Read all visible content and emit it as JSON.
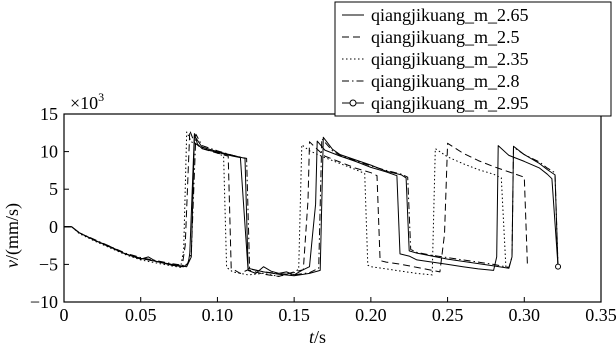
{
  "chart_data": {
    "type": "line",
    "title": "",
    "xlabel": {
      "var": "t",
      "unit": "/s"
    },
    "ylabel": {
      "var": "v",
      "unit": "/(mm/s)"
    },
    "y_multiplier": "×10",
    "y_multiplier_exp": "3",
    "xlim": [
      0,
      0.35
    ],
    "ylim": [
      -10,
      15
    ],
    "xticks": [
      "0",
      "0.05",
      "0.10",
      "0.15",
      "0.20",
      "0.25",
      "0.30",
      "0.35"
    ],
    "xtick_values": [
      0,
      0.05,
      0.1,
      0.15,
      0.2,
      0.25,
      0.3,
      0.35
    ],
    "yticks": [
      "15",
      "10",
      "5",
      "0",
      "−5",
      "−10"
    ],
    "ytick_values": [
      15,
      10,
      5,
      0,
      -5,
      -10
    ],
    "grid": false,
    "legend_position": "top-right",
    "series": [
      {
        "name": "qiangjikuang_m_2.65",
        "style": "solid",
        "points": [
          [
            0,
            0
          ],
          [
            0.005,
            0
          ],
          [
            0.01,
            -0.8
          ],
          [
            0.02,
            -1.8
          ],
          [
            0.03,
            -2.6
          ],
          [
            0.04,
            -3.6
          ],
          [
            0.05,
            -4.3
          ],
          [
            0.055,
            -4
          ],
          [
            0.06,
            -4.6
          ],
          [
            0.07,
            -5.1
          ],
          [
            0.078,
            -5.3
          ],
          [
            0.081,
            -4.8
          ],
          [
            0.082,
            -3.5
          ],
          [
            0.085,
            12.4
          ],
          [
            0.087,
            11
          ],
          [
            0.09,
            10.4
          ],
          [
            0.1,
            9.9
          ],
          [
            0.11,
            9.4
          ],
          [
            0.115,
            9.2
          ],
          [
            0.118,
            0.2
          ],
          [
            0.12,
            -5.8
          ],
          [
            0.125,
            -6.2
          ],
          [
            0.13,
            -5.3
          ],
          [
            0.135,
            -5.9
          ],
          [
            0.14,
            -6.2
          ],
          [
            0.145,
            -6
          ],
          [
            0.15,
            -6.4
          ],
          [
            0.155,
            -5.8
          ],
          [
            0.16,
            -5.3
          ],
          [
            0.162,
            -1
          ],
          [
            0.164,
            3
          ],
          [
            0.165,
            11.4
          ],
          [
            0.17,
            10.2
          ],
          [
            0.18,
            9.4
          ],
          [
            0.19,
            8.7
          ],
          [
            0.2,
            7.9
          ],
          [
            0.21,
            7.3
          ],
          [
            0.217,
            6.8
          ],
          [
            0.219,
            -3.6
          ],
          [
            0.225,
            -3.9
          ],
          [
            0.23,
            -4.4
          ],
          [
            0.24,
            -4.7
          ],
          [
            0.25,
            -5
          ],
          [
            0.26,
            -5.3
          ],
          [
            0.27,
            -5.6
          ],
          [
            0.28,
            -5.8
          ],
          [
            0.282,
            -4
          ],
          [
            0.283,
            10.8
          ],
          [
            0.29,
            9.5
          ],
          [
            0.3,
            8.7
          ],
          [
            0.31,
            7.8
          ],
          [
            0.315,
            7
          ],
          [
            0.318,
            6.4
          ],
          [
            0.322,
            -5.2
          ]
        ]
      },
      {
        "name": "qiangjikuang_m_2.5",
        "style": "dashed",
        "points": [
          [
            0,
            0
          ],
          [
            0.005,
            0
          ],
          [
            0.01,
            -0.8
          ],
          [
            0.02,
            -1.8
          ],
          [
            0.03,
            -2.7
          ],
          [
            0.04,
            -3.6
          ],
          [
            0.05,
            -4.2
          ],
          [
            0.06,
            -4.6
          ],
          [
            0.07,
            -5
          ],
          [
            0.077,
            -5.3
          ],
          [
            0.079,
            -2.5
          ],
          [
            0.082,
            12.8
          ],
          [
            0.085,
            11.2
          ],
          [
            0.09,
            10.4
          ],
          [
            0.1,
            9.8
          ],
          [
            0.107,
            9.4
          ],
          [
            0.109,
            -5.5
          ],
          [
            0.115,
            -6.2
          ],
          [
            0.12,
            -5.7
          ],
          [
            0.13,
            -6.3
          ],
          [
            0.14,
            -6.6
          ],
          [
            0.15,
            -6
          ],
          [
            0.156,
            -5.7
          ],
          [
            0.159,
            3.5
          ],
          [
            0.16,
            11.3
          ],
          [
            0.165,
            10.3
          ],
          [
            0.17,
            9.4
          ],
          [
            0.18,
            8.6
          ],
          [
            0.19,
            7.8
          ],
          [
            0.2,
            7.2
          ],
          [
            0.204,
            6.8
          ],
          [
            0.206,
            -4.5
          ],
          [
            0.21,
            -4.7
          ],
          [
            0.22,
            -5
          ],
          [
            0.23,
            -5.4
          ],
          [
            0.24,
            -5.8
          ],
          [
            0.245,
            -6
          ],
          [
            0.248,
            -1
          ],
          [
            0.25,
            11.1
          ],
          [
            0.26,
            9.8
          ],
          [
            0.27,
            8.8
          ],
          [
            0.28,
            8
          ],
          [
            0.29,
            7.3
          ],
          [
            0.3,
            6.6
          ],
          [
            0.302,
            -5
          ]
        ]
      },
      {
        "name": "qiangjikuang_m_2.35",
        "style": "dotted",
        "points": [
          [
            0,
            0
          ],
          [
            0.005,
            0
          ],
          [
            0.01,
            -0.9
          ],
          [
            0.02,
            -1.9
          ],
          [
            0.03,
            -2.8
          ],
          [
            0.04,
            -3.7
          ],
          [
            0.05,
            -4.4
          ],
          [
            0.06,
            -4.8
          ],
          [
            0.07,
            -5.2
          ],
          [
            0.076,
            -5.4
          ],
          [
            0.078,
            -3
          ],
          [
            0.08,
            12.6
          ],
          [
            0.083,
            11.3
          ],
          [
            0.09,
            10.5
          ],
          [
            0.1,
            9.8
          ],
          [
            0.104,
            9.4
          ],
          [
            0.106,
            -5.4
          ],
          [
            0.11,
            -6
          ],
          [
            0.12,
            -6.4
          ],
          [
            0.13,
            -6.2
          ],
          [
            0.14,
            -6.6
          ],
          [
            0.15,
            -6.1
          ],
          [
            0.153,
            -5.6
          ],
          [
            0.155,
            10.9
          ],
          [
            0.16,
            10.1
          ],
          [
            0.17,
            9.2
          ],
          [
            0.18,
            8.4
          ],
          [
            0.19,
            7.6
          ],
          [
            0.196,
            7.1
          ],
          [
            0.198,
            -5.1
          ],
          [
            0.2,
            -5.3
          ],
          [
            0.21,
            -5.6
          ],
          [
            0.22,
            -5.9
          ],
          [
            0.23,
            -6.2
          ],
          [
            0.24,
            -6.4
          ],
          [
            0.242,
            10.4
          ],
          [
            0.25,
            9.3
          ],
          [
            0.26,
            8.4
          ],
          [
            0.27,
            7.6
          ],
          [
            0.28,
            7
          ],
          [
            0.285,
            6.5
          ],
          [
            0.288,
            -5.4
          ]
        ]
      },
      {
        "name": "qiangjikuang_m_2.8",
        "style": "dashdot",
        "points": [
          [
            0,
            0
          ],
          [
            0.005,
            0
          ],
          [
            0.01,
            -0.8
          ],
          [
            0.02,
            -1.7
          ],
          [
            0.03,
            -2.6
          ],
          [
            0.04,
            -3.5
          ],
          [
            0.05,
            -4.1
          ],
          [
            0.06,
            -4.5
          ],
          [
            0.07,
            -4.9
          ],
          [
            0.08,
            -5.2
          ],
          [
            0.083,
            -3.5
          ],
          [
            0.086,
            12.3
          ],
          [
            0.09,
            10.8
          ],
          [
            0.1,
            10.1
          ],
          [
            0.11,
            9.5
          ],
          [
            0.119,
            9.1
          ],
          [
            0.121,
            -5.6
          ],
          [
            0.13,
            -6
          ],
          [
            0.14,
            -6.2
          ],
          [
            0.15,
            -6.4
          ],
          [
            0.16,
            -6.1
          ],
          [
            0.166,
            -5.5
          ],
          [
            0.168,
            11.7
          ],
          [
            0.175,
            10.1
          ],
          [
            0.18,
            9.5
          ],
          [
            0.19,
            8.8
          ],
          [
            0.2,
            8.1
          ],
          [
            0.21,
            7.5
          ],
          [
            0.22,
            7
          ],
          [
            0.224,
            6.6
          ],
          [
            0.226,
            -3
          ],
          [
            0.23,
            -3.4
          ],
          [
            0.24,
            -3.8
          ],
          [
            0.25,
            -4.1
          ],
          [
            0.26,
            -4.4
          ],
          [
            0.27,
            -4.7
          ],
          [
            0.28,
            -5
          ],
          [
            0.29,
            -5.4
          ],
          [
            0.292,
            -4
          ],
          [
            0.293,
            10.6
          ],
          [
            0.3,
            9.6
          ],
          [
            0.31,
            8.6
          ],
          [
            0.315,
            7.8
          ],
          [
            0.32,
            7.2
          ],
          [
            0.322,
            -5.2
          ]
        ]
      },
      {
        "name": "qiangjikuang_m_2.95",
        "style": "solid-circle",
        "points": [
          [
            0,
            0
          ],
          [
            0.005,
            0
          ],
          [
            0.01,
            -0.8
          ],
          [
            0.02,
            -1.8
          ],
          [
            0.03,
            -2.7
          ],
          [
            0.04,
            -3.6
          ],
          [
            0.05,
            -4.2
          ],
          [
            0.06,
            -4.6
          ],
          [
            0.07,
            -5
          ],
          [
            0.08,
            -5.3
          ],
          [
            0.083,
            -4
          ],
          [
            0.085,
            12.1
          ],
          [
            0.09,
            10.6
          ],
          [
            0.1,
            10
          ],
          [
            0.11,
            9.5
          ],
          [
            0.118,
            9.1
          ],
          [
            0.12,
            -5.5
          ],
          [
            0.13,
            -6
          ],
          [
            0.14,
            -6.3
          ],
          [
            0.15,
            -6.5
          ],
          [
            0.16,
            -6.2
          ],
          [
            0.167,
            -5.8
          ],
          [
            0.169,
            11.9
          ],
          [
            0.175,
            10.3
          ],
          [
            0.18,
            9.6
          ],
          [
            0.19,
            8.9
          ],
          [
            0.2,
            8.2
          ],
          [
            0.21,
            7.4
          ],
          [
            0.22,
            6.9
          ],
          [
            0.223,
            6.5
          ],
          [
            0.225,
            -3.2
          ],
          [
            0.23,
            -3.5
          ],
          [
            0.24,
            -3.9
          ],
          [
            0.25,
            -4.3
          ],
          [
            0.26,
            -4.6
          ],
          [
            0.27,
            -4.9
          ],
          [
            0.28,
            -5.2
          ],
          [
            0.29,
            -5.5
          ],
          [
            0.292,
            -4
          ],
          [
            0.293,
            10.7
          ],
          [
            0.3,
            9.6
          ],
          [
            0.31,
            8.4
          ],
          [
            0.315,
            7.6
          ],
          [
            0.32,
            6.9
          ],
          [
            0.322,
            -5.3
          ]
        ]
      }
    ]
  }
}
